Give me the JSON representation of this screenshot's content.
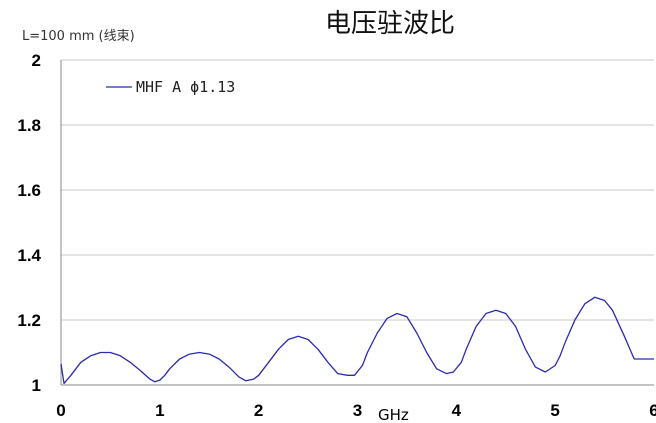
{
  "chart_data": {
    "type": "line",
    "title": "电压驻波比",
    "subtitle": "L=100 mm (线束)",
    "xlabel": "GHz",
    "ylabel": "",
    "xlim": [
      0,
      6
    ],
    "ylim": [
      1,
      2
    ],
    "xticks": [
      0,
      1,
      2,
      3,
      4,
      5,
      6
    ],
    "xtick_labels": [
      "0",
      "1",
      "2",
      "3",
      "4",
      "5",
      "6"
    ],
    "yticks": [
      1,
      1.2,
      1.4,
      1.6,
      1.8,
      2
    ],
    "ytick_labels": [
      "1",
      "1.2",
      "1.4",
      "1.6",
      "1.8",
      "2"
    ],
    "grid": "horizontal",
    "legend_position": "top-left",
    "series": [
      {
        "name": "MHF A ϕ1.13",
        "color": "#2b2bb0",
        "x": [
          0,
          0.03,
          0.1,
          0.2,
          0.3,
          0.4,
          0.5,
          0.6,
          0.7,
          0.8,
          0.9,
          0.95,
          1.0,
          1.05,
          1.1,
          1.2,
          1.3,
          1.4,
          1.5,
          1.6,
          1.7,
          1.8,
          1.87,
          1.95,
          2.0,
          2.1,
          2.2,
          2.3,
          2.4,
          2.5,
          2.6,
          2.7,
          2.8,
          2.9,
          2.97,
          3.05,
          3.1,
          3.2,
          3.3,
          3.4,
          3.5,
          3.6,
          3.7,
          3.8,
          3.9,
          3.97,
          4.05,
          4.1,
          4.2,
          4.3,
          4.4,
          4.5,
          4.6,
          4.7,
          4.8,
          4.9,
          5.0,
          5.05,
          5.1,
          5.2,
          5.3,
          5.4,
          5.5,
          5.58,
          5.7,
          5.8,
          5.9,
          6.0
        ],
        "y": [
          1.065,
          1.005,
          1.03,
          1.07,
          1.09,
          1.1,
          1.1,
          1.09,
          1.07,
          1.045,
          1.018,
          1.01,
          1.015,
          1.03,
          1.05,
          1.08,
          1.095,
          1.1,
          1.095,
          1.08,
          1.055,
          1.025,
          1.013,
          1.018,
          1.03,
          1.07,
          1.11,
          1.14,
          1.15,
          1.14,
          1.11,
          1.07,
          1.035,
          1.03,
          1.03,
          1.06,
          1.1,
          1.16,
          1.205,
          1.22,
          1.21,
          1.16,
          1.1,
          1.05,
          1.035,
          1.04,
          1.07,
          1.11,
          1.18,
          1.22,
          1.23,
          1.22,
          1.18,
          1.11,
          1.055,
          1.04,
          1.06,
          1.09,
          1.13,
          1.2,
          1.25,
          1.27,
          1.26,
          1.23,
          1.15,
          1.08,
          1.08,
          1.08
        ]
      }
    ]
  }
}
